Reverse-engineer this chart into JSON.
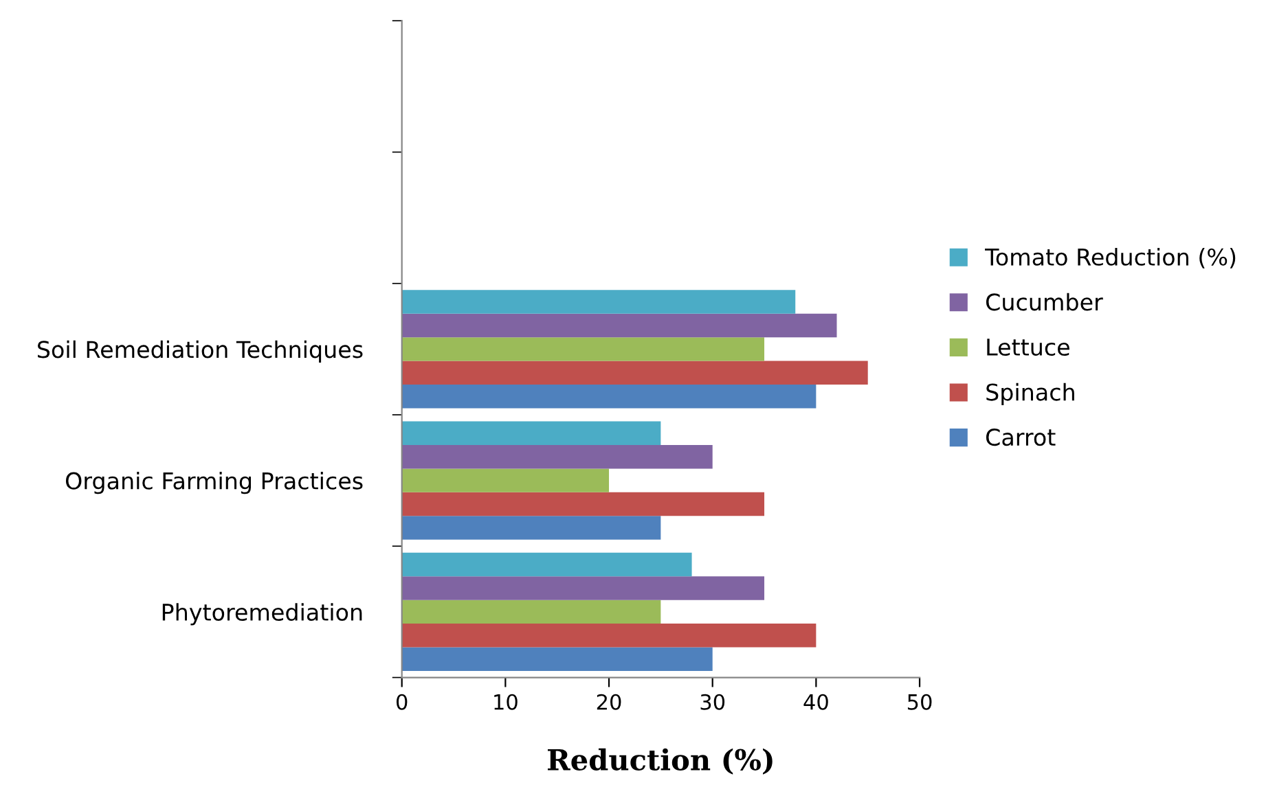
{
  "chart_data": {
    "type": "bar",
    "orientation": "horizontal",
    "categories": [
      null,
      null,
      "Soil Remediation Techniques",
      "Organic Farming Practices",
      "Phytoremediation"
    ],
    "series": [
      {
        "name": "Carrot",
        "color": "#4f81bd",
        "values": [
          null,
          null,
          40,
          25,
          30
        ]
      },
      {
        "name": "Spinach",
        "color": "#c0504d",
        "values": [
          null,
          null,
          45,
          35,
          40
        ]
      },
      {
        "name": "Lettuce",
        "color": "#9bbb59",
        "values": [
          null,
          null,
          35,
          20,
          25
        ]
      },
      {
        "name": "Cucumber",
        "color": "#8064a2",
        "values": [
          null,
          null,
          42,
          30,
          35
        ]
      },
      {
        "name": "Tomato Reduction (%)",
        "color": "#4bacc6",
        "values": [
          null,
          null,
          38,
          25,
          28
        ]
      }
    ],
    "xlabel": "Reduction (%)",
    "xlim": [
      0,
      50
    ],
    "xticks": [
      0,
      10,
      20,
      30,
      40,
      50
    ],
    "grid": false,
    "legend": "right"
  }
}
